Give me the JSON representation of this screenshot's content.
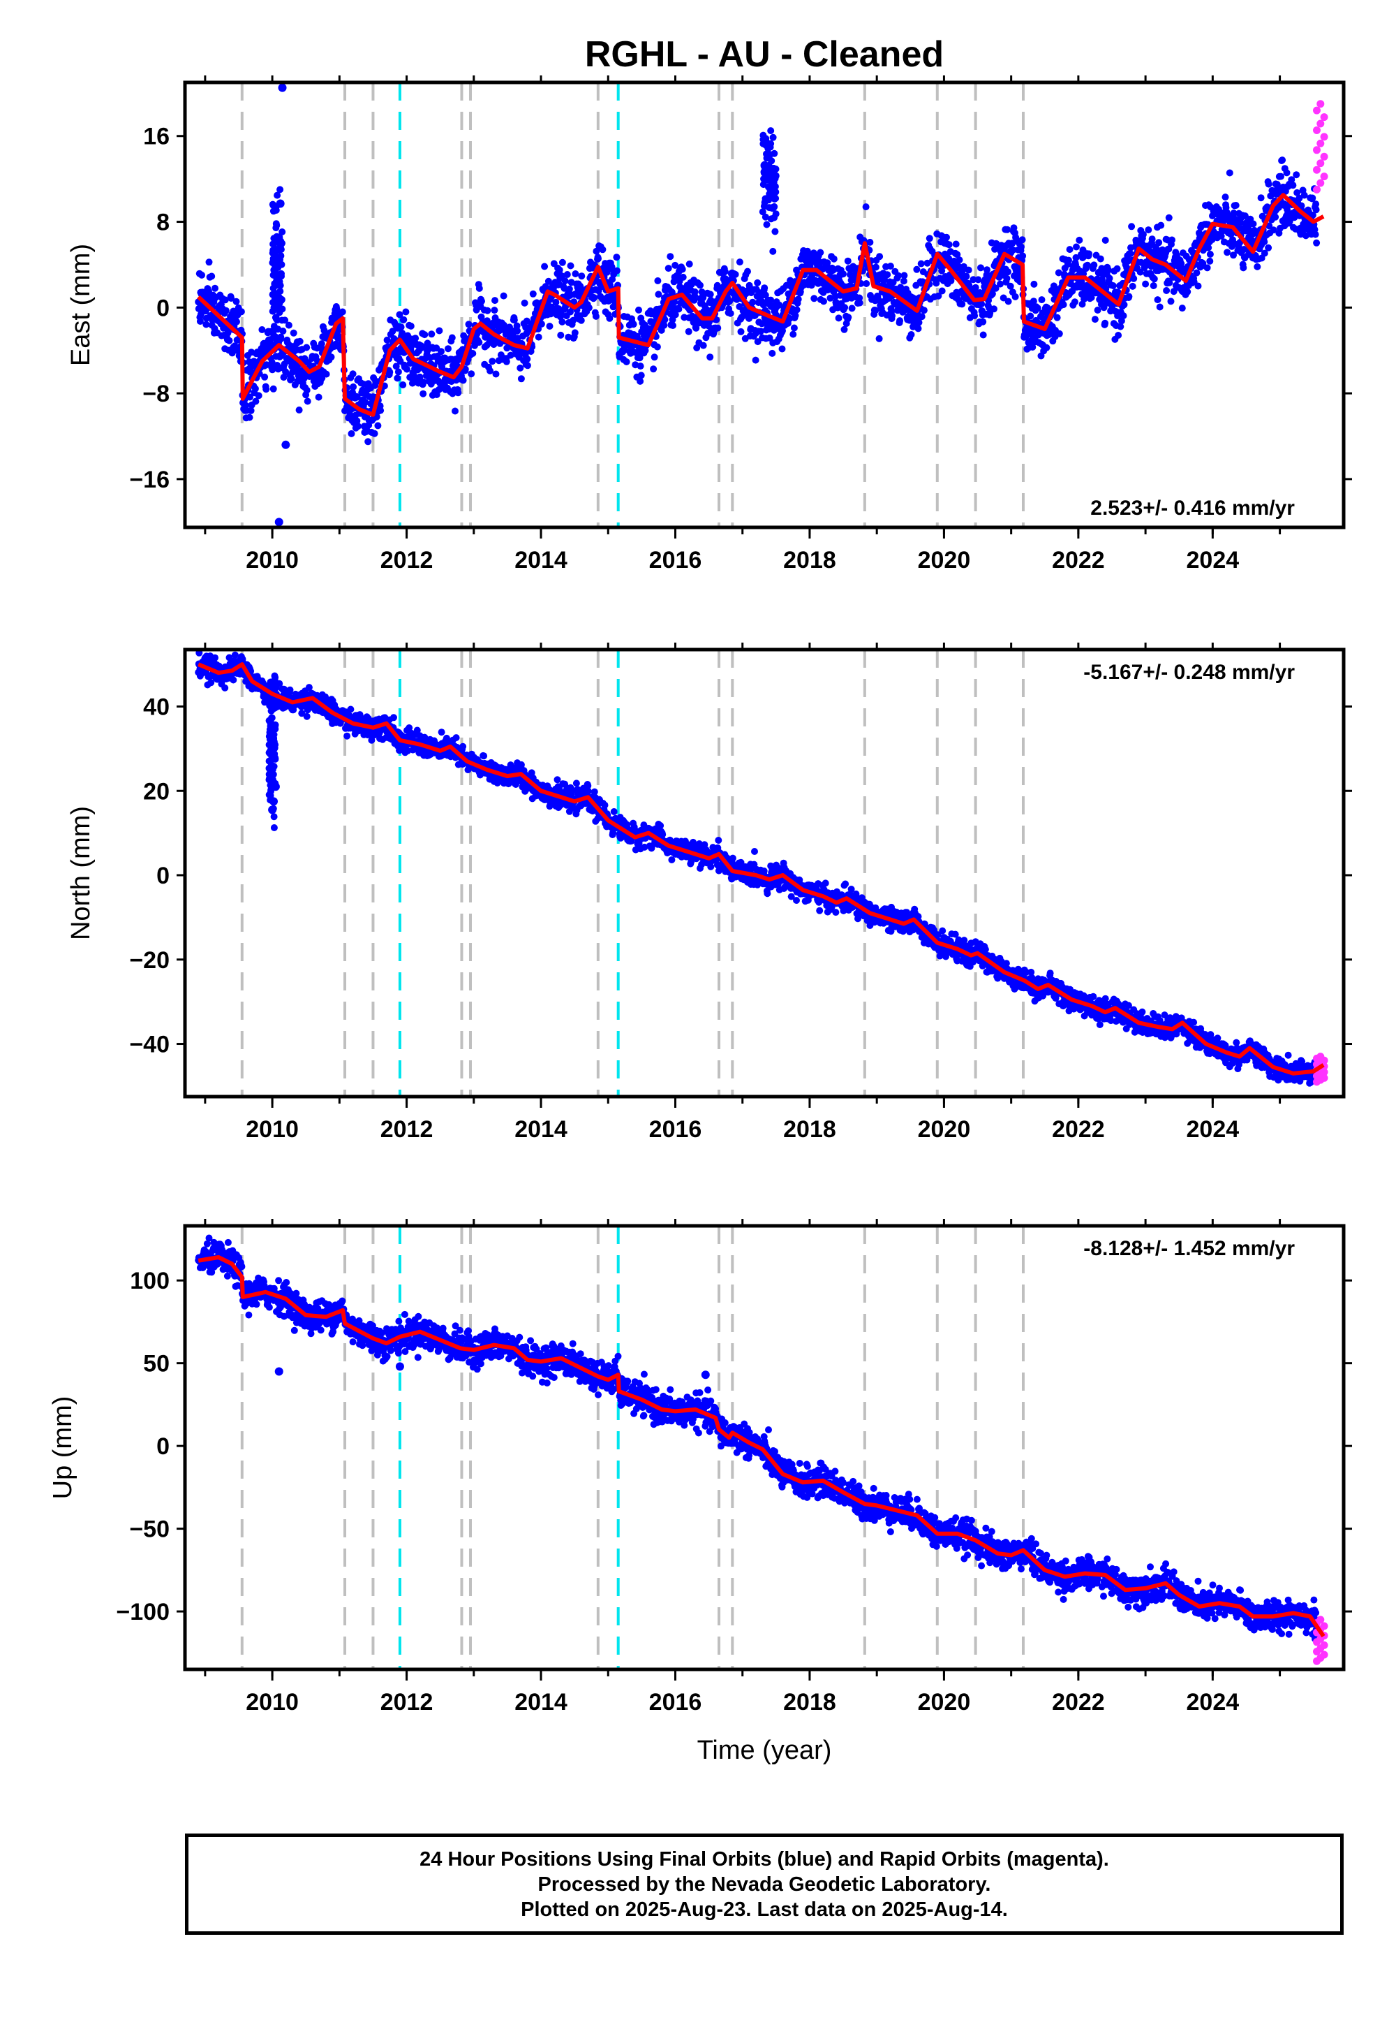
{
  "title": "RGHL  - AU - Cleaned",
  "xlabel": "Time (year)",
  "colors": {
    "final": "#0000ff",
    "rapid": "#ff33ff",
    "model": "#ff0000",
    "equipment_change": "#bfbfbf",
    "earthquake": "#00e5ee"
  },
  "equipment_changes": [
    2009.55,
    2011.08,
    2011.5,
    2012.82,
    2012.95,
    2014.85,
    2016.65,
    2016.85,
    2018.82,
    2019.9,
    2020.47,
    2021.18
  ],
  "earthquakes": [
    2011.9,
    2015.15
  ],
  "chart_data": [
    {
      "type": "scatter",
      "name": "east",
      "ylabel": "East (mm)",
      "xlim": [
        2008.7,
        2025.95
      ],
      "ylim": [
        -20.5,
        21
      ],
      "yticks": [
        -16,
        -8,
        0,
        8,
        16
      ],
      "ytick_labels": [
        "−16",
        "−8",
        "0",
        "8",
        "16"
      ],
      "xticks": [
        2010,
        2012,
        2014,
        2016,
        2018,
        2020,
        2022,
        2024
      ],
      "xtick_labels": [
        "2010",
        "2012",
        "2014",
        "2016",
        "2018",
        "2020",
        "2022",
        "2024"
      ],
      "rate": "2.523+/- 0.416 mm/yr",
      "rate_position": "bottom-right",
      "trend": [
        [
          2008.9,
          1.0
        ],
        [
          2009.55,
          -2.8
        ],
        [
          2009.56,
          -8.5
        ],
        [
          2009.85,
          -5.0
        ],
        [
          2010.1,
          -3.5
        ],
        [
          2010.4,
          -5.0
        ],
        [
          2010.55,
          -6.0
        ],
        [
          2010.7,
          -5.5
        ],
        [
          2010.95,
          -1.5
        ],
        [
          2011.05,
          -1.0
        ],
        [
          2011.08,
          -8.5
        ],
        [
          2011.3,
          -9.5
        ],
        [
          2011.5,
          -10.0
        ],
        [
          2011.75,
          -4.0
        ],
        [
          2011.9,
          -3.0
        ],
        [
          2012.1,
          -4.8
        ],
        [
          2012.5,
          -6.0
        ],
        [
          2012.7,
          -6.5
        ],
        [
          2012.82,
          -5.5
        ],
        [
          2013.0,
          -2.0
        ],
        [
          2013.1,
          -1.5
        ],
        [
          2013.3,
          -2.5
        ],
        [
          2013.6,
          -3.5
        ],
        [
          2013.8,
          -3.8
        ],
        [
          2014.1,
          1.5
        ],
        [
          2014.2,
          1.2
        ],
        [
          2014.5,
          0.0
        ],
        [
          2014.6,
          0.5
        ],
        [
          2014.85,
          3.8
        ],
        [
          2015.0,
          1.5
        ],
        [
          2015.15,
          1.8
        ],
        [
          2015.16,
          -2.8
        ],
        [
          2015.6,
          -3.5
        ],
        [
          2015.9,
          0.8
        ],
        [
          2016.1,
          1.2
        ],
        [
          2016.4,
          -1.0
        ],
        [
          2016.55,
          -1.0
        ],
        [
          2016.75,
          1.5
        ],
        [
          2016.85,
          2.3
        ],
        [
          2017.1,
          0.0
        ],
        [
          2017.4,
          -0.8
        ],
        [
          2017.6,
          -1.3
        ],
        [
          2017.9,
          3.5
        ],
        [
          2018.1,
          3.5
        ],
        [
          2018.5,
          1.5
        ],
        [
          2018.7,
          1.8
        ],
        [
          2018.82,
          6.0
        ],
        [
          2018.95,
          2.0
        ],
        [
          2019.2,
          1.5
        ],
        [
          2019.6,
          -0.3
        ],
        [
          2019.9,
          5.0
        ],
        [
          2020.1,
          3.5
        ],
        [
          2020.45,
          0.7
        ],
        [
          2020.6,
          0.8
        ],
        [
          2020.9,
          5.0
        ],
        [
          2021.17,
          4.0
        ],
        [
          2021.19,
          -1.3
        ],
        [
          2021.5,
          -2.0
        ],
        [
          2021.85,
          2.8
        ],
        [
          2022.1,
          2.8
        ],
        [
          2022.5,
          0.8
        ],
        [
          2022.6,
          0.3
        ],
        [
          2022.9,
          5.5
        ],
        [
          2023.1,
          4.5
        ],
        [
          2023.3,
          4.0
        ],
        [
          2023.6,
          2.5
        ],
        [
          2023.8,
          5.5
        ],
        [
          2024.0,
          7.8
        ],
        [
          2024.3,
          7.5
        ],
        [
          2024.6,
          5.2
        ],
        [
          2024.9,
          9.5
        ],
        [
          2025.05,
          10.5
        ],
        [
          2025.3,
          9.0
        ],
        [
          2025.5,
          8.0
        ],
        [
          2025.65,
          8.5
        ]
      ],
      "scatter_sd": 1.4,
      "extra_clusters": [
        {
          "x": [
            2017.3,
            2017.5
          ],
          "y": 12.0,
          "sd": 2.2
        },
        {
          "x": [
            2010.0,
            2010.15
          ],
          "y": 4.0,
          "sd": 3.0
        }
      ],
      "outliers": [
        [
          2010.15,
          20.5
        ],
        [
          2010.1,
          -20.0
        ],
        [
          2010.2,
          -12.8
        ],
        [
          2010.12,
          9.7
        ]
      ],
      "rapid": {
        "x": [
          2025.55,
          2025.66
        ],
        "y": [
          11.0,
          19.0
        ]
      }
    },
    {
      "type": "scatter",
      "name": "north",
      "ylabel": "North (mm)",
      "xlim": [
        2008.7,
        2025.95
      ],
      "ylim": [
        -52.5,
        53.5
      ],
      "yticks": [
        -40,
        -20,
        0,
        20,
        40
      ],
      "ytick_labels": [
        "−40",
        "−20",
        "0",
        "20",
        "40"
      ],
      "xticks": [
        2010,
        2012,
        2014,
        2016,
        2018,
        2020,
        2022,
        2024
      ],
      "xtick_labels": [
        "2010",
        "2012",
        "2014",
        "2016",
        "2018",
        "2020",
        "2022",
        "2024"
      ],
      "rate": "-5.167+/- 0.248 mm/yr",
      "rate_position": "top-right",
      "trend": [
        [
          2008.9,
          50.0
        ],
        [
          2009.2,
          48.0
        ],
        [
          2009.4,
          48.5
        ],
        [
          2009.55,
          50.0
        ],
        [
          2009.7,
          46.0
        ],
        [
          2010.0,
          43.0
        ],
        [
          2010.3,
          41.0
        ],
        [
          2010.6,
          42.0
        ],
        [
          2010.9,
          38.5
        ],
        [
          2011.2,
          36.0
        ],
        [
          2011.5,
          35.0
        ],
        [
          2011.7,
          36.0
        ],
        [
          2011.9,
          32.0
        ],
        [
          2012.2,
          31.0
        ],
        [
          2012.5,
          29.5
        ],
        [
          2012.65,
          30.5
        ],
        [
          2012.9,
          27.0
        ],
        [
          2013.2,
          25.0
        ],
        [
          2013.5,
          23.5
        ],
        [
          2013.7,
          24.0
        ],
        [
          2014.0,
          20.0
        ],
        [
          2014.3,
          18.5
        ],
        [
          2014.5,
          17.5
        ],
        [
          2014.7,
          18.5
        ],
        [
          2015.0,
          13.0
        ],
        [
          2015.15,
          11.5
        ],
        [
          2015.4,
          9.0
        ],
        [
          2015.6,
          10.0
        ],
        [
          2015.9,
          7.0
        ],
        [
          2016.2,
          5.5
        ],
        [
          2016.5,
          4.0
        ],
        [
          2016.65,
          5.0
        ],
        [
          2016.85,
          1.0
        ],
        [
          2017.2,
          0.0
        ],
        [
          2017.4,
          -1.0
        ],
        [
          2017.6,
          0.0
        ],
        [
          2017.9,
          -3.5
        ],
        [
          2018.2,
          -5.0
        ],
        [
          2018.4,
          -6.5
        ],
        [
          2018.55,
          -5.5
        ],
        [
          2018.9,
          -9.0
        ],
        [
          2019.2,
          -10.5
        ],
        [
          2019.4,
          -11.5
        ],
        [
          2019.55,
          -10.5
        ],
        [
          2019.9,
          -16.0
        ],
        [
          2020.2,
          -17.5
        ],
        [
          2020.4,
          -19.0
        ],
        [
          2020.5,
          -18.5
        ],
        [
          2020.9,
          -23.0
        ],
        [
          2021.2,
          -25.0
        ],
        [
          2021.4,
          -27.0
        ],
        [
          2021.55,
          -26.0
        ],
        [
          2021.9,
          -29.5
        ],
        [
          2022.2,
          -31.0
        ],
        [
          2022.4,
          -32.5
        ],
        [
          2022.55,
          -31.5
        ],
        [
          2022.9,
          -35.0
        ],
        [
          2023.2,
          -36.0
        ],
        [
          2023.4,
          -36.5
        ],
        [
          2023.55,
          -35.0
        ],
        [
          2023.9,
          -40.0
        ],
        [
          2024.2,
          -42.0
        ],
        [
          2024.4,
          -43.0
        ],
        [
          2024.55,
          -41.0
        ],
        [
          2024.9,
          -45.5
        ],
        [
          2025.2,
          -47.0
        ],
        [
          2025.5,
          -46.5
        ],
        [
          2025.65,
          -45.0
        ]
      ],
      "scatter_sd": 1.3,
      "extra_clusters": [
        {
          "x": [
            2009.95,
            2010.05
          ],
          "y": 30.0,
          "sd": 8.0
        }
      ],
      "outliers": [
        [
          2010.0,
          15.5
        ],
        [
          2010.05,
          21.0
        ],
        [
          2010.02,
          17.5
        ]
      ],
      "rapid": {
        "x": [
          2025.55,
          2025.66
        ],
        "y": [
          -49.0,
          -43.0
        ]
      }
    },
    {
      "type": "scatter",
      "name": "up",
      "ylabel": "Up (mm)",
      "xlim": [
        2008.7,
        2025.95
      ],
      "ylim": [
        -135,
        133
      ],
      "yticks": [
        -100,
        -50,
        0,
        50,
        100
      ],
      "ytick_labels": [
        "−100",
        "−50",
        "0",
        "50",
        "100"
      ],
      "xticks": [
        2010,
        2012,
        2014,
        2016,
        2018,
        2020,
        2022,
        2024
      ],
      "xtick_labels": [
        "2010",
        "2012",
        "2014",
        "2016",
        "2018",
        "2020",
        "2022",
        "2024"
      ],
      "rate": "-8.128+/- 1.452 mm/yr",
      "rate_position": "top-right",
      "trend": [
        [
          2008.9,
          112.0
        ],
        [
          2009.2,
          114.0
        ],
        [
          2009.4,
          110.0
        ],
        [
          2009.55,
          102.0
        ],
        [
          2009.56,
          90.0
        ],
        [
          2009.9,
          93.0
        ],
        [
          2010.2,
          89.0
        ],
        [
          2010.5,
          79.0
        ],
        [
          2010.8,
          78.0
        ],
        [
          2011.05,
          82.0
        ],
        [
          2011.08,
          74.0
        ],
        [
          2011.5,
          65.0
        ],
        [
          2011.7,
          62.0
        ],
        [
          2011.9,
          66.0
        ],
        [
          2012.2,
          69.0
        ],
        [
          2012.5,
          64.0
        ],
        [
          2012.8,
          59.0
        ],
        [
          2013.0,
          58.0
        ],
        [
          2013.3,
          61.0
        ],
        [
          2013.6,
          59.0
        ],
        [
          2013.8,
          52.0
        ],
        [
          2014.0,
          51.0
        ],
        [
          2014.3,
          53.0
        ],
        [
          2014.6,
          47.0
        ],
        [
          2014.85,
          42.0
        ],
        [
          2015.0,
          40.0
        ],
        [
          2015.15,
          43.0
        ],
        [
          2015.16,
          33.0
        ],
        [
          2015.5,
          28.0
        ],
        [
          2015.8,
          22.0
        ],
        [
          2016.0,
          21.0
        ],
        [
          2016.3,
          22.0
        ],
        [
          2016.6,
          17.0
        ],
        [
          2016.65,
          10.0
        ],
        [
          2016.8,
          5.0
        ],
        [
          2016.85,
          8.0
        ],
        [
          2017.1,
          2.0
        ],
        [
          2017.3,
          -2.0
        ],
        [
          2017.6,
          -17.0
        ],
        [
          2017.9,
          -22.0
        ],
        [
          2018.2,
          -21.0
        ],
        [
          2018.5,
          -28.0
        ],
        [
          2018.82,
          -35.0
        ],
        [
          2019.0,
          -36.0
        ],
        [
          2019.3,
          -39.0
        ],
        [
          2019.6,
          -42.0
        ],
        [
          2019.9,
          -53.0
        ],
        [
          2020.2,
          -53.0
        ],
        [
          2020.47,
          -57.0
        ],
        [
          2020.8,
          -65.0
        ],
        [
          2021.0,
          -66.0
        ],
        [
          2021.18,
          -63.0
        ],
        [
          2021.5,
          -75.0
        ],
        [
          2021.8,
          -79.0
        ],
        [
          2022.1,
          -77.0
        ],
        [
          2022.4,
          -78.0
        ],
        [
          2022.7,
          -87.0
        ],
        [
          2023.0,
          -86.0
        ],
        [
          2023.3,
          -83.0
        ],
        [
          2023.5,
          -90.0
        ],
        [
          2023.8,
          -97.0
        ],
        [
          2024.1,
          -95.0
        ],
        [
          2024.4,
          -97.0
        ],
        [
          2024.6,
          -103.0
        ],
        [
          2024.9,
          -103.0
        ],
        [
          2025.2,
          -101.0
        ],
        [
          2025.45,
          -103.0
        ],
        [
          2025.65,
          -115.0
        ]
      ],
      "scatter_sd": 4.5,
      "extra_clusters": [],
      "outliers": [
        [
          2010.1,
          45.0
        ],
        [
          2016.45,
          43.0
        ],
        [
          2011.9,
          48.0
        ]
      ],
      "rapid": {
        "x": [
          2025.55,
          2025.66
        ],
        "y": [
          -130.0,
          -105.0
        ]
      }
    }
  ],
  "footer": {
    "line1": "24 Hour Positions Using Final Orbits (blue) and Rapid Orbits (magenta).",
    "line2": "Processed by the Nevada Geodetic Laboratory.",
    "line3": "Plotted on 2025-Aug-23. Last data on 2025-Aug-14."
  }
}
